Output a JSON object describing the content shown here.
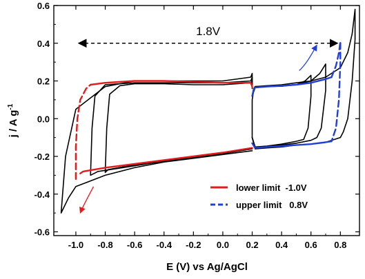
{
  "chart_data": {
    "type": "line",
    "title": "",
    "xlabel": "E (V) vs Ag/AgCl",
    "ylabel_main": "j / A g",
    "ylabel_sup": "-1",
    "xlim": [
      -1.15,
      0.93
    ],
    "ylim": [
      -0.62,
      0.6
    ],
    "x_ticks": [
      -1.0,
      -0.8,
      -0.6,
      -0.4,
      -0.2,
      0.0,
      0.2,
      0.4,
      0.6,
      0.8
    ],
    "x_tick_labels": [
      "-1.0",
      "-0.8",
      "-0.6",
      "-0.4",
      "-0.2",
      "0.0",
      "0.2",
      "0.4",
      "0.6",
      "0.8"
    ],
    "y_ticks": [
      -0.6,
      -0.4,
      -0.2,
      0.0,
      0.2,
      0.4,
      0.6
    ],
    "y_tick_labels": [
      "-0.6",
      "-0.4",
      "-0.2",
      "0.0",
      "0.2",
      "0.4",
      "0.6"
    ],
    "grid": false,
    "legend_position": "bottom-right",
    "legend": [
      {
        "label": "lower limit  -1.0V",
        "color": "#e41a1c"
      },
      {
        "label": "upper limit   0.8V",
        "color": "#1f3fd6"
      }
    ],
    "annotation": {
      "text": "1.8V",
      "x_from": -1.0,
      "x_to": 0.8,
      "y": 0.4
    },
    "colors": {
      "black": "#000000",
      "red": "#e41a1c",
      "blue": "#1f3fd6"
    },
    "series": [
      {
        "color": "#000000",
        "dashed": false,
        "x": [
          0.2,
          0.0,
          -0.2,
          -0.4,
          -0.6,
          -0.8,
          -1.0,
          -1.05,
          -1.1,
          -1.07,
          -1.0,
          -0.8,
          -0.6,
          -0.4,
          -0.2,
          0.0,
          0.19,
          0.2,
          0.2
        ],
        "y": [
          -0.17,
          -0.19,
          -0.21,
          -0.23,
          -0.26,
          -0.3,
          -0.36,
          -0.42,
          -0.5,
          -0.2,
          0.05,
          0.17,
          0.2,
          0.2,
          0.2,
          0.2,
          0.22,
          0.24,
          0.2
        ]
      },
      {
        "color": "#000000",
        "dashed": false,
        "x": [
          0.2,
          0.0,
          -0.2,
          -0.4,
          -0.6,
          -0.85,
          -0.9,
          -0.89,
          -0.87,
          -0.8,
          -0.6,
          -0.4,
          -0.2,
          0.0,
          0.19,
          0.2,
          0.2
        ],
        "y": [
          -0.16,
          -0.185,
          -0.205,
          -0.225,
          -0.25,
          -0.28,
          -0.3,
          -0.05,
          0.12,
          0.18,
          0.19,
          0.19,
          0.19,
          0.19,
          0.2,
          0.22,
          0.18
        ]
      },
      {
        "color": "#000000",
        "dashed": false,
        "x": [
          0.2,
          0.0,
          -0.2,
          -0.4,
          -0.6,
          -0.78,
          -0.8,
          -0.79,
          -0.77,
          -0.7,
          -0.6,
          -0.4,
          -0.2,
          0.0,
          0.19,
          0.2,
          0.2
        ],
        "y": [
          -0.155,
          -0.18,
          -0.2,
          -0.22,
          -0.245,
          -0.27,
          -0.285,
          -0.05,
          0.13,
          0.175,
          0.185,
          0.185,
          0.18,
          0.18,
          0.19,
          0.2,
          0.16
        ]
      },
      {
        "color": "#e41a1c",
        "dashed": false,
        "x": [
          0.2,
          0.0,
          -0.2,
          -0.4,
          -0.6,
          -0.8,
          -0.95,
          -0.97
        ],
        "y": [
          -0.155,
          -0.18,
          -0.2,
          -0.22,
          -0.24,
          -0.26,
          -0.28,
          -0.29
        ]
      },
      {
        "color": "#e41a1c",
        "dashed": false,
        "x": [
          -0.9,
          -0.8,
          -0.6,
          -0.4,
          -0.2,
          0.0,
          0.19,
          0.2
        ],
        "y": [
          0.18,
          0.19,
          0.2,
          0.2,
          0.195,
          0.19,
          0.19,
          0.17
        ]
      },
      {
        "color": "#e41a1c",
        "dashed": true,
        "x": [
          -1.0,
          -1.0,
          -0.99,
          -0.97,
          -0.93,
          -0.9
        ],
        "y": [
          -0.32,
          -0.15,
          0.0,
          0.1,
          0.16,
          0.18
        ]
      },
      {
        "color": "#000000",
        "dashed": false,
        "x": [
          0.2,
          0.21,
          0.22,
          0.3,
          0.4,
          0.5,
          0.6,
          0.7,
          0.8,
          0.85,
          0.88,
          0.9,
          0.9,
          0.88,
          0.85,
          0.82,
          0.8,
          0.7,
          0.6,
          0.5,
          0.4,
          0.3,
          0.22,
          0.2,
          0.2
        ],
        "y": [
          0.1,
          0.15,
          0.17,
          0.175,
          0.18,
          0.19,
          0.2,
          0.22,
          0.27,
          0.35,
          0.45,
          0.58,
          0.42,
          0.2,
          0.0,
          -0.07,
          -0.1,
          -0.125,
          -0.135,
          -0.14,
          -0.15,
          -0.155,
          -0.16,
          -0.1,
          0.1
        ]
      },
      {
        "color": "#000000",
        "dashed": false,
        "x": [
          0.2,
          0.21,
          0.22,
          0.3,
          0.4,
          0.5,
          0.6,
          0.66,
          0.7,
          0.7,
          0.67,
          0.64,
          0.6,
          0.5,
          0.4,
          0.3,
          0.22,
          0.2
        ],
        "y": [
          0.12,
          0.16,
          0.17,
          0.172,
          0.175,
          0.18,
          0.2,
          0.24,
          0.29,
          0.15,
          -0.05,
          -0.1,
          -0.115,
          -0.13,
          -0.14,
          -0.15,
          -0.155,
          -0.1
        ]
      },
      {
        "color": "#000000",
        "dashed": false,
        "x": [
          0.2,
          0.22,
          0.3,
          0.4,
          0.5,
          0.56,
          0.6,
          0.6,
          0.58,
          0.55,
          0.5,
          0.4,
          0.3,
          0.22,
          0.2
        ],
        "y": [
          0.12,
          0.165,
          0.17,
          0.172,
          0.18,
          0.2,
          0.23,
          0.12,
          -0.05,
          -0.11,
          -0.12,
          -0.135,
          -0.145,
          -0.15,
          -0.1
        ]
      },
      {
        "color": "#1f3fd6",
        "dashed": false,
        "x": [
          0.2,
          0.21,
          0.22,
          0.3,
          0.4,
          0.5,
          0.6,
          0.7,
          0.74
        ],
        "y": [
          0.12,
          0.155,
          0.165,
          0.17,
          0.175,
          0.18,
          0.19,
          0.21,
          0.22
        ]
      },
      {
        "color": "#1f3fd6",
        "dashed": false,
        "x": [
          0.2,
          0.22,
          0.3,
          0.4,
          0.5,
          0.6,
          0.7,
          0.74
        ],
        "y": [
          -0.13,
          -0.155,
          -0.15,
          -0.145,
          -0.14,
          -0.135,
          -0.125,
          -0.12
        ]
      },
      {
        "color": "#1f3fd6",
        "dashed": true,
        "x": [
          0.74,
          0.77,
          0.79,
          0.8,
          0.8,
          0.79,
          0.77,
          0.74
        ],
        "y": [
          0.22,
          0.28,
          0.35,
          0.41,
          0.3,
          0.1,
          -0.05,
          -0.12
        ]
      }
    ],
    "curved_arrows": [
      {
        "color": "#1f3fd6",
        "points": [
          [
            0.52,
            0.255
          ],
          [
            0.57,
            0.29
          ],
          [
            0.61,
            0.35
          ],
          [
            0.64,
            0.39
          ]
        ]
      },
      {
        "color": "#e41a1c",
        "points": [
          [
            -0.88,
            -0.36
          ],
          [
            -0.92,
            -0.42
          ],
          [
            -0.95,
            -0.46
          ],
          [
            -0.97,
            -0.5
          ]
        ]
      }
    ]
  }
}
